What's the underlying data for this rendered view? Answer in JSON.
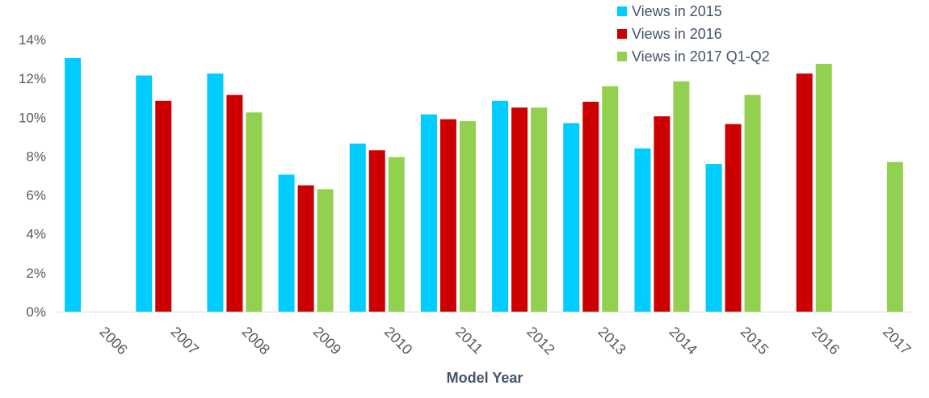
{
  "chart_data": {
    "type": "bar",
    "title": "",
    "xlabel": "Model Year",
    "ylabel": "",
    "ylim": [
      0,
      14
    ],
    "y_tick_step": 2,
    "y_tick_suffix": "%",
    "grid": false,
    "legend_position": "top-right",
    "categories": [
      "2006",
      "2007",
      "2008",
      "2009",
      "2010",
      "2011",
      "2012",
      "2013",
      "2014",
      "2015",
      "2016",
      "2017"
    ],
    "series": [
      {
        "name": "Views in 2015",
        "color": "#00ccff",
        "values": [
          13.05,
          12.15,
          12.25,
          7.05,
          8.65,
          10.15,
          10.85,
          9.7,
          8.4,
          7.6,
          null,
          null
        ]
      },
      {
        "name": "Views in 2016",
        "color": "#cc0000",
        "values": [
          null,
          10.85,
          11.15,
          6.5,
          8.3,
          9.9,
          10.5,
          10.8,
          10.05,
          9.65,
          12.25,
          null
        ]
      },
      {
        "name": "Views in 2017 Q1-Q2",
        "color": "#92d050",
        "values": [
          null,
          null,
          10.25,
          6.3,
          7.95,
          9.8,
          10.5,
          11.6,
          11.85,
          11.15,
          12.75,
          7.7
        ]
      }
    ]
  }
}
